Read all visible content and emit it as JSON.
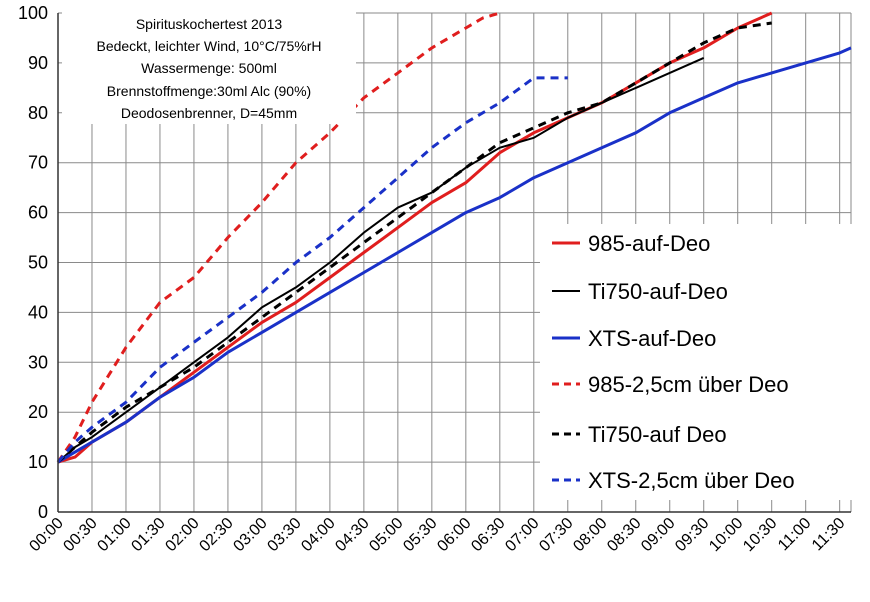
{
  "chart_data": {
    "type": "line",
    "title": "",
    "xlabel": "",
    "ylabel": "",
    "ylim": [
      0,
      100
    ],
    "xlim": [
      "00:00",
      "11:40"
    ],
    "grid": true,
    "legend_position": "right",
    "info_box": {
      "lines": [
        "Spirituskochertest 2013",
        "Bedeckt, leichter Wind, 10°C/75%rH",
        "Wassermenge: 500ml",
        "Brennstoffmenge:30ml Alc (90%)",
        "Deodosenbrenner,  D=45mm"
      ]
    },
    "y_ticks": [
      "0",
      "10",
      "20",
      "30",
      "40",
      "50",
      "60",
      "70",
      "80",
      "90",
      "100"
    ],
    "x_ticks": [
      "00:00",
      "00:30",
      "01:00",
      "01:30",
      "02:00",
      "02:30",
      "03:00",
      "03:30",
      "04:00",
      "04:30",
      "05:00",
      "05:30",
      "06:00",
      "06:30",
      "07:00",
      "07:30",
      "08:00",
      "08:30",
      "09:00",
      "09:30",
      "10:00",
      "10:30",
      "11:00",
      "11:30"
    ],
    "series": [
      {
        "name": "985-auf-Deo",
        "color": "#e01e1e",
        "dash": "solid",
        "points": [
          [
            "00:00",
            10
          ],
          [
            "00:15",
            11
          ],
          [
            "00:30",
            14
          ],
          [
            "01:00",
            18
          ],
          [
            "01:30",
            23
          ],
          [
            "02:00",
            28
          ],
          [
            "02:30",
            33
          ],
          [
            "03:00",
            38
          ],
          [
            "03:30",
            42
          ],
          [
            "04:00",
            47
          ],
          [
            "04:30",
            52
          ],
          [
            "05:00",
            57
          ],
          [
            "05:30",
            62
          ],
          [
            "06:00",
            66
          ],
          [
            "06:30",
            72
          ],
          [
            "07:00",
            76
          ],
          [
            "07:30",
            79
          ],
          [
            "08:00",
            82
          ],
          [
            "08:30",
            86
          ],
          [
            "09:00",
            90
          ],
          [
            "09:30",
            93
          ],
          [
            "10:00",
            97
          ],
          [
            "10:30",
            100
          ]
        ]
      },
      {
        "name": "Ti750-auf-Deo",
        "color": "#000000",
        "dash": "solid",
        "points": [
          [
            "00:00",
            10
          ],
          [
            "00:15",
            13
          ],
          [
            "00:30",
            15
          ],
          [
            "01:00",
            20
          ],
          [
            "01:30",
            25
          ],
          [
            "02:00",
            30
          ],
          [
            "02:30",
            35
          ],
          [
            "03:00",
            41
          ],
          [
            "03:30",
            45
          ],
          [
            "04:00",
            50
          ],
          [
            "04:30",
            56
          ],
          [
            "05:00",
            61
          ],
          [
            "05:30",
            64
          ],
          [
            "06:00",
            69
          ],
          [
            "06:30",
            73
          ],
          [
            "07:00",
            75
          ],
          [
            "07:30",
            79
          ],
          [
            "08:00",
            82
          ],
          [
            "08:30",
            85
          ],
          [
            "09:00",
            88
          ],
          [
            "09:30",
            91
          ]
        ]
      },
      {
        "name": "XTS-auf-Deo",
        "color": "#1a31c8",
        "dash": "solid",
        "points": [
          [
            "00:00",
            10
          ],
          [
            "00:15",
            12
          ],
          [
            "00:30",
            14
          ],
          [
            "01:00",
            18
          ],
          [
            "01:30",
            23
          ],
          [
            "02:00",
            27
          ],
          [
            "02:30",
            32
          ],
          [
            "03:00",
            36
          ],
          [
            "03:30",
            40
          ],
          [
            "04:00",
            44
          ],
          [
            "04:30",
            48
          ],
          [
            "05:00",
            52
          ],
          [
            "05:30",
            56
          ],
          [
            "06:00",
            60
          ],
          [
            "06:30",
            63
          ],
          [
            "07:00",
            67
          ],
          [
            "07:30",
            70
          ],
          [
            "08:00",
            73
          ],
          [
            "08:30",
            76
          ],
          [
            "09:00",
            80
          ],
          [
            "09:30",
            83
          ],
          [
            "10:00",
            86
          ],
          [
            "10:30",
            88
          ],
          [
            "11:00",
            90
          ],
          [
            "11:30",
            92
          ],
          [
            "11:40",
            93
          ]
        ]
      },
      {
        "name": "985-2,5cm über Deo",
        "color": "#e01e1e",
        "dash": "dashed",
        "points": [
          [
            "00:00",
            10
          ],
          [
            "00:15",
            15
          ],
          [
            "00:30",
            22
          ],
          [
            "01:00",
            33
          ],
          [
            "01:30",
            42
          ],
          [
            "02:00",
            47
          ],
          [
            "02:30",
            55
          ],
          [
            "03:00",
            62
          ],
          [
            "03:30",
            70
          ],
          [
            "04:00",
            76
          ],
          [
            "04:30",
            83
          ],
          [
            "05:00",
            88
          ],
          [
            "05:30",
            93
          ],
          [
            "06:00",
            97
          ],
          [
            "06:15",
            99
          ],
          [
            "06:30",
            100
          ]
        ]
      },
      {
        "name": "Ti750-auf Deo",
        "color": "#000000",
        "dash": "dashed",
        "points": [
          [
            "00:00",
            10
          ],
          [
            "00:15",
            13
          ],
          [
            "00:30",
            16
          ],
          [
            "01:00",
            21
          ],
          [
            "01:30",
            25
          ],
          [
            "02:00",
            29
          ],
          [
            "02:30",
            34
          ],
          [
            "03:00",
            39
          ],
          [
            "03:30",
            44
          ],
          [
            "04:00",
            49
          ],
          [
            "04:30",
            54
          ],
          [
            "05:00",
            59
          ],
          [
            "05:30",
            64
          ],
          [
            "06:00",
            69
          ],
          [
            "06:30",
            74
          ],
          [
            "07:00",
            77
          ],
          [
            "07:30",
            80
          ],
          [
            "08:00",
            82
          ],
          [
            "08:30",
            86
          ],
          [
            "09:00",
            90
          ],
          [
            "09:30",
            94
          ],
          [
            "10:00",
            97
          ],
          [
            "10:30",
            98
          ]
        ]
      },
      {
        "name": "XTS-2,5cm über Deo",
        "color": "#1a31c8",
        "dash": "dashed",
        "points": [
          [
            "00:00",
            10
          ],
          [
            "00:15",
            14
          ],
          [
            "00:30",
            17
          ],
          [
            "01:00",
            22
          ],
          [
            "01:30",
            29
          ],
          [
            "02:00",
            34
          ],
          [
            "02:30",
            39
          ],
          [
            "03:00",
            44
          ],
          [
            "03:30",
            50
          ],
          [
            "04:00",
            55
          ],
          [
            "04:30",
            61
          ],
          [
            "05:00",
            67
          ],
          [
            "05:30",
            73
          ],
          [
            "06:00",
            78
          ],
          [
            "06:30",
            82
          ],
          [
            "07:00",
            87
          ],
          [
            "07:30",
            87
          ]
        ]
      }
    ]
  }
}
